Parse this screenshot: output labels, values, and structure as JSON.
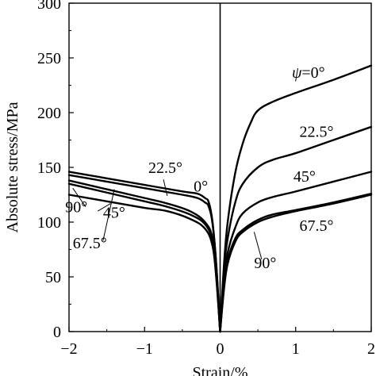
{
  "chart_data": {
    "type": "line",
    "xlabel": "Strain/%",
    "ylabel": "Absolute stress/MPa",
    "xlim": [
      -2,
      2
    ],
    "ylim": [
      0,
      300
    ],
    "xticks": [
      "−2",
      "−1",
      "0",
      "1",
      "2"
    ],
    "xtick_values": [
      -2,
      -1,
      0,
      1,
      2
    ],
    "yticks": [
      "0",
      "50",
      "100",
      "150",
      "200",
      "250",
      "300"
    ],
    "ytick_values": [
      0,
      50,
      100,
      150,
      200,
      250,
      300
    ],
    "series": [
      {
        "name": "0°",
        "tension": [
          [
            0,
            0
          ],
          [
            0.05,
            60
          ],
          [
            0.1,
            100
          ],
          [
            0.2,
            145
          ],
          [
            0.3,
            172
          ],
          [
            0.4,
            190
          ],
          [
            0.5,
            202
          ],
          [
            0.7,
            210
          ],
          [
            1.0,
            218
          ],
          [
            1.5,
            230
          ],
          [
            2.0,
            243
          ]
        ],
        "compression": [
          [
            0,
            0
          ],
          [
            -0.05,
            60
          ],
          [
            -0.1,
            100
          ],
          [
            -0.15,
            118
          ],
          [
            -0.2,
            122
          ],
          [
            -0.3,
            126
          ],
          [
            -0.5,
            128
          ],
          [
            -1.0,
            134
          ],
          [
            -1.5,
            140
          ],
          [
            -2.0,
            146
          ]
        ]
      },
      {
        "name": "22.5°",
        "tension": [
          [
            0,
            0
          ],
          [
            0.05,
            55
          ],
          [
            0.1,
            85
          ],
          [
            0.2,
            118
          ],
          [
            0.3,
            135
          ],
          [
            0.5,
            150
          ],
          [
            0.7,
            157
          ],
          [
            1.0,
            163
          ],
          [
            1.5,
            175
          ],
          [
            2.0,
            187
          ]
        ],
        "compression": [
          [
            0,
            0
          ],
          [
            -0.05,
            60
          ],
          [
            -0.1,
            98
          ],
          [
            -0.15,
            114
          ],
          [
            -0.2,
            118
          ],
          [
            -0.3,
            122
          ],
          [
            -0.5,
            125
          ],
          [
            -1.0,
            131
          ],
          [
            -1.5,
            137
          ],
          [
            -2.0,
            143
          ]
        ]
      },
      {
        "name": "45°",
        "tension": [
          [
            0,
            0
          ],
          [
            0.05,
            45
          ],
          [
            0.1,
            72
          ],
          [
            0.2,
            95
          ],
          [
            0.3,
            108
          ],
          [
            0.5,
            118
          ],
          [
            0.7,
            123
          ],
          [
            1.0,
            128
          ],
          [
            1.5,
            137
          ],
          [
            2.0,
            146
          ]
        ],
        "compression": [
          [
            0,
            0
          ],
          [
            -0.05,
            52
          ],
          [
            -0.1,
            85
          ],
          [
            -0.2,
            100
          ],
          [
            -0.4,
            110
          ],
          [
            -0.7,
            117
          ],
          [
            -1.0,
            122
          ],
          [
            -1.5,
            130
          ],
          [
            -2.0,
            138
          ]
        ]
      },
      {
        "name": "67.5°",
        "tension": [
          [
            0,
            0
          ],
          [
            0.05,
            40
          ],
          [
            0.1,
            65
          ],
          [
            0.2,
            85
          ],
          [
            0.3,
            93
          ],
          [
            0.5,
            102
          ],
          [
            0.7,
            107
          ],
          [
            1.0,
            111
          ],
          [
            1.5,
            118
          ],
          [
            2.0,
            126
          ]
        ],
        "compression": [
          [
            0,
            0
          ],
          [
            -0.05,
            50
          ],
          [
            -0.1,
            82
          ],
          [
            -0.2,
            98
          ],
          [
            -0.4,
            107
          ],
          [
            -0.7,
            114
          ],
          [
            -1.0,
            119
          ],
          [
            -1.5,
            127
          ],
          [
            -2.0,
            135
          ]
        ]
      },
      {
        "name": "90°",
        "tension": [
          [
            0,
            0
          ],
          [
            0.05,
            38
          ],
          [
            0.1,
            62
          ],
          [
            0.2,
            82
          ],
          [
            0.3,
            91
          ],
          [
            0.5,
            100
          ],
          [
            0.7,
            105
          ],
          [
            1.0,
            110
          ],
          [
            1.5,
            117
          ],
          [
            2.0,
            125
          ]
        ],
        "compression": [
          [
            0,
            0
          ],
          [
            -0.05,
            48
          ],
          [
            -0.1,
            78
          ],
          [
            -0.2,
            94
          ],
          [
            -0.4,
            103
          ],
          [
            -0.7,
            110
          ],
          [
            -1.0,
            113
          ],
          [
            -1.5,
            119
          ],
          [
            -2.0,
            125
          ]
        ]
      }
    ],
    "annotations": [
      {
        "prefix": "ψ",
        "text": "=0°",
        "x": 0.95,
        "y": 232
      },
      {
        "text": "22.5°",
        "x": 1.05,
        "y": 178
      },
      {
        "text": "45°",
        "x": 0.97,
        "y": 137
      },
      {
        "text": "67.5°",
        "x": 1.05,
        "y": 92
      },
      {
        "text": "90°",
        "x": 0.45,
        "y": 58
      },
      {
        "text": "0°",
        "x": -0.35,
        "y": 128
      },
      {
        "text": "22.5°",
        "x": -0.95,
        "y": 145
      },
      {
        "text": "45°",
        "x": -1.55,
        "y": 104
      },
      {
        "text": "90°",
        "x": -2.05,
        "y": 109
      },
      {
        "text": "67.5°",
        "x": -1.95,
        "y": 76
      }
    ],
    "grid": false
  }
}
